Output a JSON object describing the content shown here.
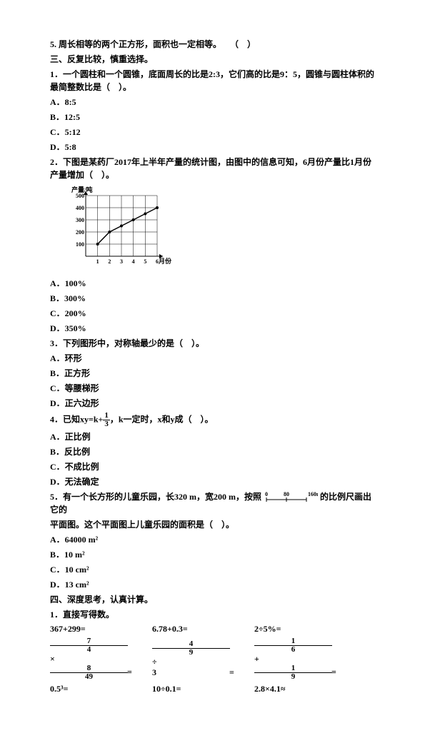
{
  "q5_tf": "5. 周长相等的两个正方形，面积也一定相等。　　（　）",
  "section3_title": "三、反复比较，慎重选择。",
  "q1": {
    "stem": "1．一个圆柱和一个圆锥，底面周长的比是2:3，它们高的比是9：5，圆锥与圆柱体积的最简整数比是（　）。",
    "a": "A．8:5",
    "b": "B．12:5",
    "c": "C．5:12",
    "d": "D．5:8"
  },
  "q2": {
    "stem": "2．下图是某药厂2017年上半年产量的统计图，由图中的信息可知，6月份产量比1月份产量增加（　）。",
    "a": "A．100%",
    "b": "B．300%",
    "c": "C．200%",
    "d": "D．350%"
  },
  "chart": {
    "yLabel": "产量/吨",
    "xLabel": "月份",
    "yTicks": [
      "100",
      "200",
      "300",
      "400",
      "500"
    ],
    "xTicks": [
      "1",
      "2",
      "3",
      "4",
      "5",
      "6"
    ],
    "points": [
      [
        1,
        100
      ],
      [
        2,
        200
      ],
      [
        3,
        250
      ],
      [
        4,
        300
      ],
      [
        5,
        350
      ],
      [
        6,
        400
      ]
    ],
    "bg": "#ffffff",
    "line": "#000000"
  },
  "q3": {
    "stem": "3．下列图形中，对称轴最少的是（　）。",
    "a": "A．环形",
    "b": "B．正方形",
    "c": "C．等腰梯形",
    "d": "D．正六边形"
  },
  "q4": {
    "stem_before": "4．已知xy=k+",
    "frac_num": "1",
    "frac_den": "3",
    "stem_after": "，k一定时，x和y成（　）。",
    "a": "A．正比例",
    "b": "B．反比例",
    "c": "C．不成比例",
    "d": "D．无法确定"
  },
  "q5": {
    "stem_before": "5．有一个长方形的儿童乐园，长320 m，宽200 m，按照",
    "scale_left": "0",
    "scale_mid": "80",
    "scale_right": "160m",
    "stem_after": "的比例尺画出它的",
    "stem_line2": "平面图。这个平面图上儿童乐园的面积是（　）。",
    "a": "A．64000 m²",
    "b": "B．10 m²",
    "c": "C．10 cm²",
    "d": "D．13 cm²"
  },
  "section4_title": "四、深度思考，认真计算。",
  "calc_title": "1．直接写得数。",
  "row1": {
    "c1": "367+299=",
    "c2": "6.78+0.3=",
    "c3": "2÷5%="
  },
  "row2": {
    "e1": {
      "n1": "7",
      "d1": "4",
      "op": "×",
      "n2": "8",
      "d2": "49"
    },
    "e2": {
      "n1": "4",
      "d1": "9",
      "op": "÷",
      "d2": "3"
    },
    "e3": {
      "n1": "1",
      "d1": "6",
      "op": "+",
      "n2": "1",
      "d2": "9"
    }
  },
  "row3": {
    "c1": "0.5³=",
    "c2": "10÷0.1=",
    "c3": "2.8×4.1≈"
  }
}
